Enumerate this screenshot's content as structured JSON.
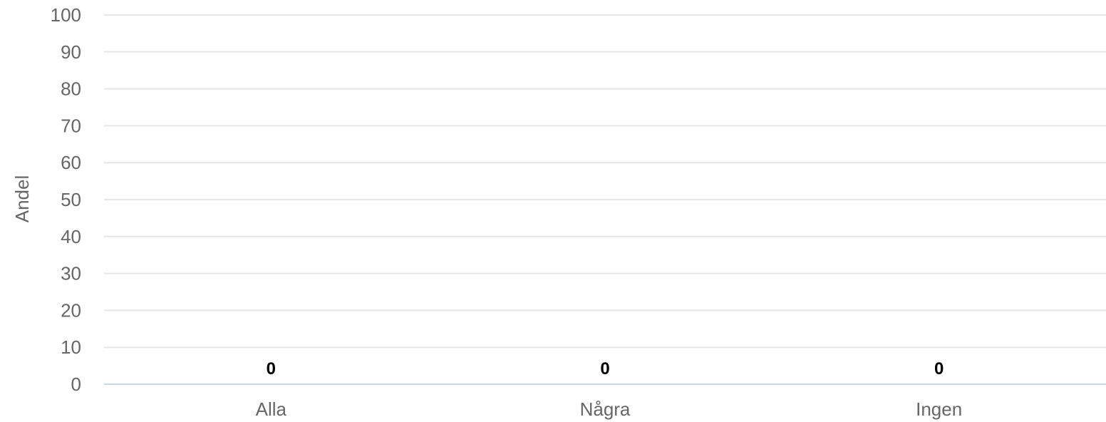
{
  "chart_data": {
    "type": "bar",
    "categories": [
      "Alla",
      "Några",
      "Ingen"
    ],
    "values": [
      0,
      0,
      0
    ],
    "data_labels": [
      "0",
      "0",
      "0"
    ],
    "title": "",
    "xlabel": "",
    "ylabel": "Andel",
    "ylim": [
      0,
      100
    ],
    "yticks": [
      "0",
      "10",
      "20",
      "30",
      "40",
      "50",
      "60",
      "70",
      "80",
      "90",
      "100"
    ],
    "grid": true,
    "bar_color": "#7cb5ec",
    "grid_color": "#e6e6e6",
    "axis_color": "#ccd6eb",
    "label_color": "#666666"
  }
}
